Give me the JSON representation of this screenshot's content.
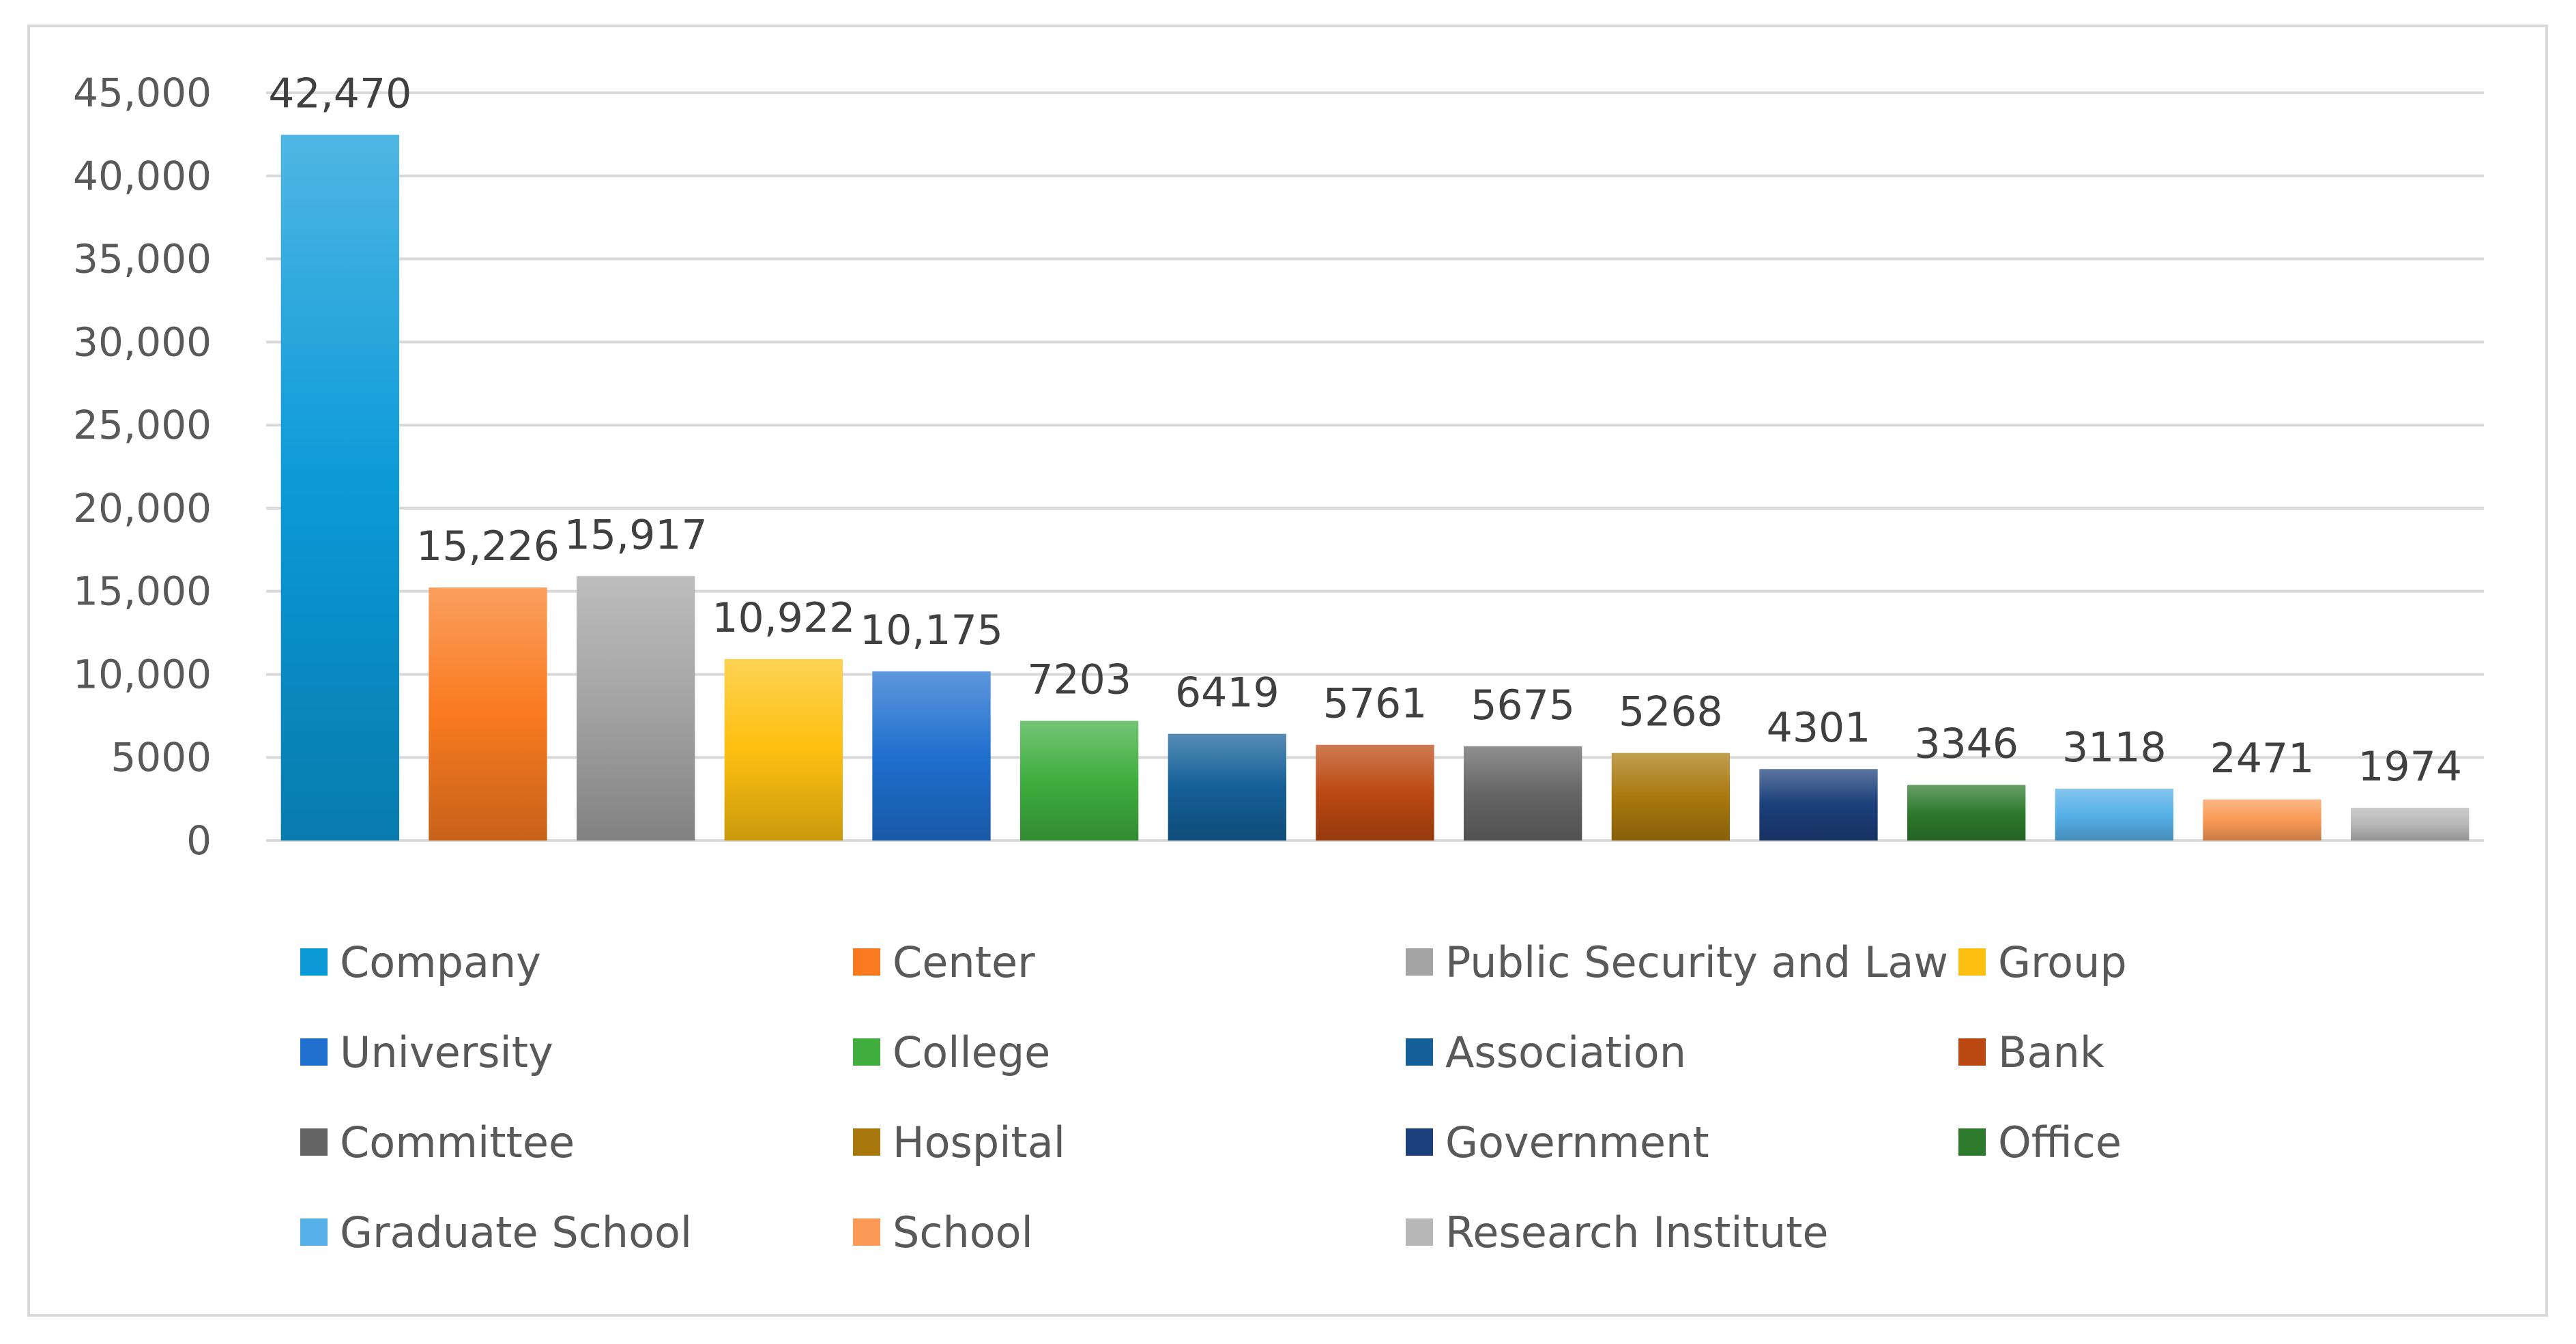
{
  "chart_data": {
    "type": "bar",
    "title": "",
    "xlabel": "",
    "ylabel": "",
    "ylim": [
      0,
      45000
    ],
    "y_ticks": [
      0,
      5000,
      10000,
      15000,
      20000,
      25000,
      30000,
      35000,
      40000,
      45000
    ],
    "y_tick_labels": [
      "0",
      "5000",
      "10,000",
      "15,000",
      "20,000",
      "25,000",
      "30,000",
      "35,000",
      "40,000",
      "45,000"
    ],
    "grid": true,
    "legend_position": "bottom",
    "categories": [
      "Company",
      "Center",
      "Public Security and Law",
      "Group",
      "University",
      "College",
      "Association",
      "Bank",
      "Committee",
      "Hospital",
      "Government",
      "Office",
      "Graduate School",
      "School",
      "Research Institute"
    ],
    "values": [
      42470,
      15226,
      15917,
      10922,
      10175,
      7203,
      6419,
      5761,
      5675,
      5268,
      4301,
      3346,
      3118,
      2471,
      1974
    ],
    "data_labels": [
      "42,470",
      "15,226",
      "15,917",
      "10,922",
      "10,175",
      "7203",
      "6419",
      "5761",
      "5675",
      "5268",
      "4301",
      "3346",
      "3118",
      "2471",
      "1974"
    ],
    "colors": [
      "#0a9ad8",
      "#f97a1f",
      "#a3a3a3",
      "#fdc010",
      "#1f6fcf",
      "#3fae3f",
      "#145f97",
      "#bb4811",
      "#656565",
      "#a9780d",
      "#1b3f7a",
      "#2d7a2d",
      "#56b0e8",
      "#fa9a56",
      "#b8b8b8"
    ]
  }
}
